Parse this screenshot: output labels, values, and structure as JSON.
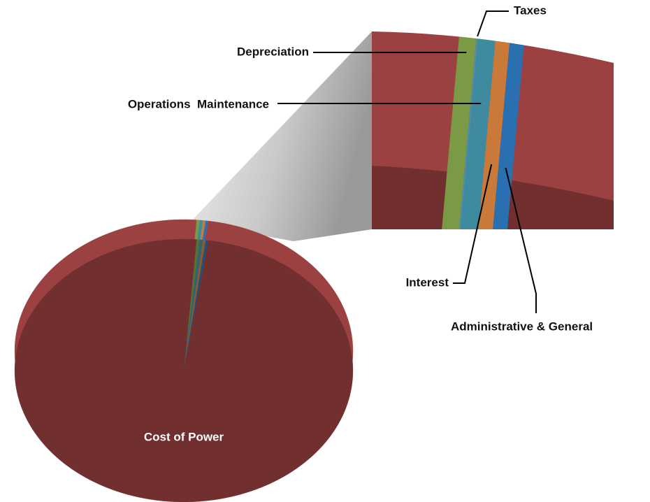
{
  "chart_data": {
    "type": "pie",
    "categories": [
      "Depreciation",
      "Taxes",
      "Operations  Maintenance",
      "Interest",
      "Administrative & General",
      "Cost of Power"
    ],
    "values": [
      0.3,
      0.03,
      0.3,
      0.25,
      0.25,
      98.87
    ],
    "colors": [
      "#7a9a45",
      "#4a8fb0",
      "#3e8a9e",
      "#c97a3a",
      "#2a6fb0",
      "#9c4141"
    ]
  }
}
